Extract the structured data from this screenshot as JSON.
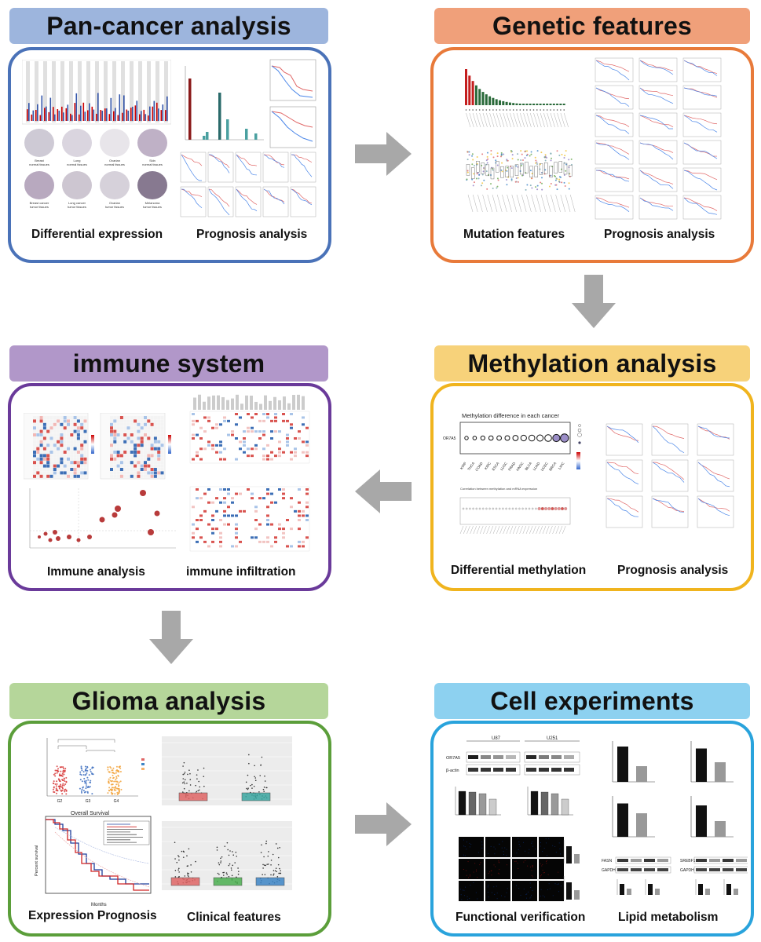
{
  "sections": {
    "pan_cancer": {
      "title": "Pan-cancer analysis",
      "color": "#4a72b8",
      "title_bg": "#9db5dd",
      "captions": [
        "Differential expression",
        "Prognosis analysis"
      ],
      "tissue_labels": [
        "Breast\nnormal tissues",
        "Lung\nnormal tissues",
        "Ovarian\nnormal tissues",
        "Skin\nnormal tissues",
        "Breast cancer\ntumor tissues",
        "Lung cancer\ntumor tissues",
        "Ovarian\ntumor tissues",
        "Melanoma\ntumor tissues"
      ]
    },
    "genetic": {
      "title": "Genetic features",
      "color": "#e87a3a",
      "title_bg": "#f0a07a",
      "captions": [
        "Mutation features",
        "Prognosis analysis"
      ]
    },
    "immune": {
      "title": "immune system",
      "color": "#6a3a9a",
      "title_bg": "#b197c9",
      "captions": [
        "Immune analysis",
        "immune infiltration"
      ]
    },
    "methylation": {
      "title": "Methylation analysis",
      "color": "#f0b41e",
      "title_bg": "#f7d27a",
      "captions": [
        "Differential methylation",
        "Prognosis analysis"
      ],
      "plot_title": "Methylation difference in each cancer",
      "gene": "OR7A5",
      "cancers": [
        "KIRP",
        "THCA",
        "COAD",
        "KIRC",
        "ESCA",
        "LUSC",
        "PRAD",
        "HNSC",
        "BLCA",
        "LUAD",
        "UCEC",
        "BRCA",
        "LIHC"
      ],
      "sub_plot_title": "Correlation between methylation and mRNA expression"
    },
    "glioma": {
      "title": "Glioma analysis",
      "color": "#5b9e3a",
      "title_bg": "#b5d69a",
      "captions": [
        "Expression Prognosis",
        "Clinical features"
      ],
      "survival_title": "Overall Survival",
      "survival_xlabel": "Months",
      "survival_ylabel": "Percent survival",
      "box_xlabels": [
        "G2",
        "G3",
        "G4"
      ],
      "box_ylabel": "OR7A5 expression"
    },
    "cell": {
      "title": "Cell experiments",
      "color": "#29a3dc",
      "title_bg": "#8dd1f0",
      "captions": [
        "Functional verification",
        "Lipid metabolism"
      ],
      "cell_lines": [
        "U87",
        "U251"
      ],
      "bands": [
        "OR7A5",
        "β-actin"
      ],
      "lipid_bands": [
        "FASN",
        "GAPDH",
        "SREBF1",
        "GAPDH"
      ],
      "knockdown_labels": [
        "si-Con",
        "si-OR7A5#1",
        "si-OR7A5#2",
        "si-OR7A5#3"
      ],
      "bar_labels": [
        "si-Con",
        "si-OR7A5#3"
      ]
    }
  },
  "flow": [
    "right",
    "down",
    "left",
    "down",
    "right"
  ]
}
